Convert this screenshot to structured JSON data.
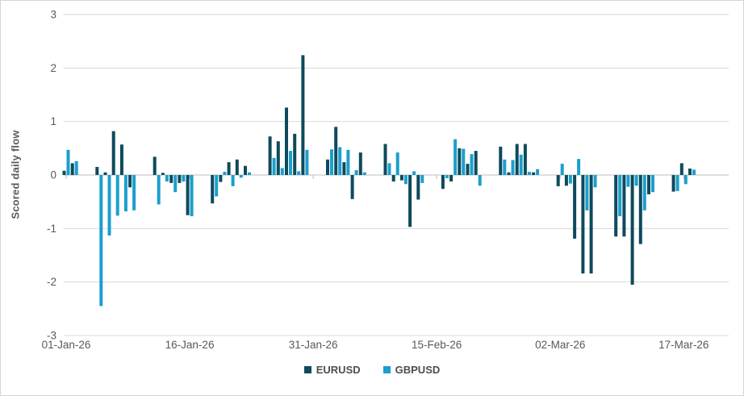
{
  "chart": {
    "border_color": "#d6d6d6",
    "background": "#ffffff",
    "gridline_color": "#d9d9d9",
    "zero_axis_color": "#bfbfbf",
    "tick_label_color": "#595959"
  },
  "chart_data": {
    "type": "bar",
    "title": "",
    "xlabel": "",
    "ylabel": "Scored daily flow",
    "ylim": [
      -3,
      3
    ],
    "yticks": [
      3,
      2,
      1,
      0,
      -1,
      -2,
      -3
    ],
    "xticks": [
      "01-Jan-26",
      "16-Jan-26",
      "31-Jan-26",
      "15-Feb-26",
      "02-Mar-26",
      "17-Mar-26"
    ],
    "xtick_day_index": [
      0,
      15,
      30,
      45,
      60,
      75
    ],
    "grid": "horizontal",
    "legend_position": "bottom",
    "x": [
      "2026-01-01",
      "2026-01-02",
      "2026-01-05",
      "2026-01-06",
      "2026-01-07",
      "2026-01-08",
      "2026-01-09",
      "2026-01-12",
      "2026-01-13",
      "2026-01-14",
      "2026-01-15",
      "2026-01-16",
      "2026-01-19",
      "2026-01-20",
      "2026-01-21",
      "2026-01-22",
      "2026-01-23",
      "2026-01-26",
      "2026-01-27",
      "2026-01-28",
      "2026-01-29",
      "2026-01-30",
      "2026-02-02",
      "2026-02-03",
      "2026-02-04",
      "2026-02-05",
      "2026-02-06",
      "2026-02-09",
      "2026-02-10",
      "2026-02-11",
      "2026-02-12",
      "2026-02-13",
      "2026-02-16",
      "2026-02-17",
      "2026-02-18",
      "2026-02-19",
      "2026-02-20",
      "2026-02-23",
      "2026-02-24",
      "2026-02-25",
      "2026-02-26",
      "2026-02-27",
      "2026-03-02",
      "2026-03-03",
      "2026-03-04",
      "2026-03-05",
      "2026-03-06",
      "2026-03-09",
      "2026-03-10",
      "2026-03-11",
      "2026-03-12",
      "2026-03-13",
      "2026-03-16",
      "2026-03-17",
      "2026-03-18"
    ],
    "series": [
      {
        "name": "EURUSD",
        "color": "#0d4a5c",
        "values": [
          0.08,
          0.22,
          0.15,
          0.05,
          0.82,
          0.57,
          -0.23,
          0.34,
          0.04,
          -0.15,
          -0.15,
          -0.75,
          -0.53,
          -0.13,
          0.24,
          0.29,
          0.17,
          0.72,
          0.63,
          1.26,
          0.77,
          2.24,
          0.29,
          0.9,
          0.24,
          -0.45,
          0.42,
          0.58,
          -0.12,
          -0.1,
          -0.97,
          -0.46,
          -0.26,
          -0.12,
          0.5,
          0.21,
          0.45,
          0.53,
          0.05,
          0.58,
          0.58,
          0.05,
          -0.21,
          -0.2,
          -1.19,
          -1.84,
          -1.84,
          -1.15,
          -1.15,
          -2.05,
          -1.29,
          -0.36,
          -0.31,
          0.22,
          0.12
        ]
      },
      {
        "name": "GBPUSD",
        "color": "#1b9fcc",
        "values": [
          0.47,
          0.26,
          -2.45,
          -1.13,
          -0.76,
          -0.68,
          -0.66,
          -0.55,
          -0.12,
          -0.32,
          -0.12,
          -0.77,
          -0.4,
          0.06,
          -0.21,
          -0.05,
          0.05,
          0.32,
          0.13,
          0.45,
          0.07,
          0.47,
          0.48,
          0.52,
          0.47,
          0.09,
          0.05,
          0.22,
          0.42,
          -0.17,
          0.07,
          -0.15,
          -0.06,
          0.67,
          0.49,
          0.39,
          -0.2,
          0.29,
          0.28,
          0.38,
          0.06,
          0.11,
          0.21,
          -0.16,
          0.3,
          -0.66,
          -0.23,
          -0.77,
          -0.22,
          -0.2,
          -0.66,
          -0.32,
          -0.3,
          -0.17,
          0.1
        ]
      }
    ]
  }
}
